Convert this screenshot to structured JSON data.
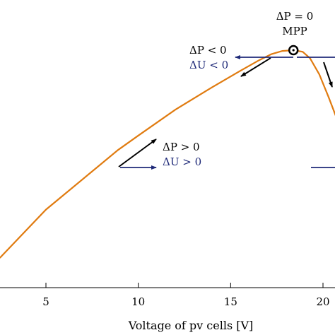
{
  "chart_data": {
    "type": "line",
    "title": "",
    "xlabel": "Voltage of pv cells  [V]",
    "ylabel": "",
    "xlim": [
      2.5,
      21.5
    ],
    "xticks": [
      5,
      10,
      15,
      20
    ],
    "tick_labels": [
      "5",
      "10",
      "15",
      "20"
    ],
    "grid": false,
    "series": [
      {
        "color": "#e07b10",
        "x": [
          2.5,
          5,
          8.9,
          10,
          12,
          14,
          15.5,
          16.5,
          17.2,
          17.8,
          18.4,
          18.9,
          19.3,
          19.8,
          20.3,
          20.8,
          21.1
        ],
        "y": [
          0.0,
          0.3,
          0.67,
          0.76,
          0.92,
          1.06,
          1.16,
          1.225,
          1.265,
          1.285,
          1.29,
          1.28,
          1.24,
          1.14,
          1.0,
          0.85,
          0.72
        ]
      }
    ],
    "mpp": {
      "x": 18.4,
      "y": 1.29,
      "labels": [
        "ΔP = 0",
        "MPP"
      ]
    },
    "annotations": [
      {
        "id": "left",
        "line1": "ΔP > 0",
        "line2": "ΔU > 0"
      },
      {
        "id": "mid",
        "line1": "ΔP < 0",
        "line2": "ΔU < 0"
      }
    ],
    "colors": {
      "curve": "#e07b10",
      "navy": "#1f2a78",
      "black": "#000000"
    }
  }
}
